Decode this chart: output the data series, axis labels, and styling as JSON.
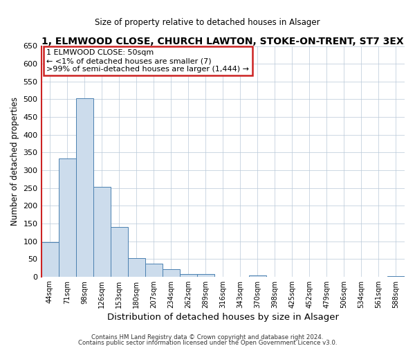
{
  "title": "1, ELMWOOD CLOSE, CHURCH LAWTON, STOKE-ON-TRENT, ST7 3EX",
  "subtitle": "Size of property relative to detached houses in Alsager",
  "xlabel": "Distribution of detached houses by size in Alsager",
  "ylabel": "Number of detached properties",
  "bar_labels": [
    "44sqm",
    "71sqm",
    "98sqm",
    "126sqm",
    "153sqm",
    "180sqm",
    "207sqm",
    "234sqm",
    "262sqm",
    "289sqm",
    "316sqm",
    "343sqm",
    "370sqm",
    "398sqm",
    "425sqm",
    "452sqm",
    "479sqm",
    "506sqm",
    "534sqm",
    "561sqm",
    "588sqm"
  ],
  "bar_values": [
    97,
    333,
    503,
    254,
    140,
    52,
    37,
    21,
    7,
    8,
    0,
    0,
    4,
    0,
    0,
    0,
    0,
    0,
    0,
    0,
    2
  ],
  "bar_color": "#ccdcec",
  "bar_edge_color": "#4a80b0",
  "left_spine_color": "#cc2222",
  "ylim": [
    0,
    650
  ],
  "yticks": [
    0,
    50,
    100,
    150,
    200,
    250,
    300,
    350,
    400,
    450,
    500,
    550,
    600,
    650
  ],
  "annotation_title": "1 ELMWOOD CLOSE: 50sqm",
  "annotation_line1": "← <1% of detached houses are smaller (7)",
  "annotation_line2": ">99% of semi-detached houses are larger (1,444) →",
  "annotation_box_color": "#cc2222",
  "footer1": "Contains HM Land Registry data © Crown copyright and database right 2024.",
  "footer2": "Contains public sector information licensed under the Open Government Licence v3.0."
}
